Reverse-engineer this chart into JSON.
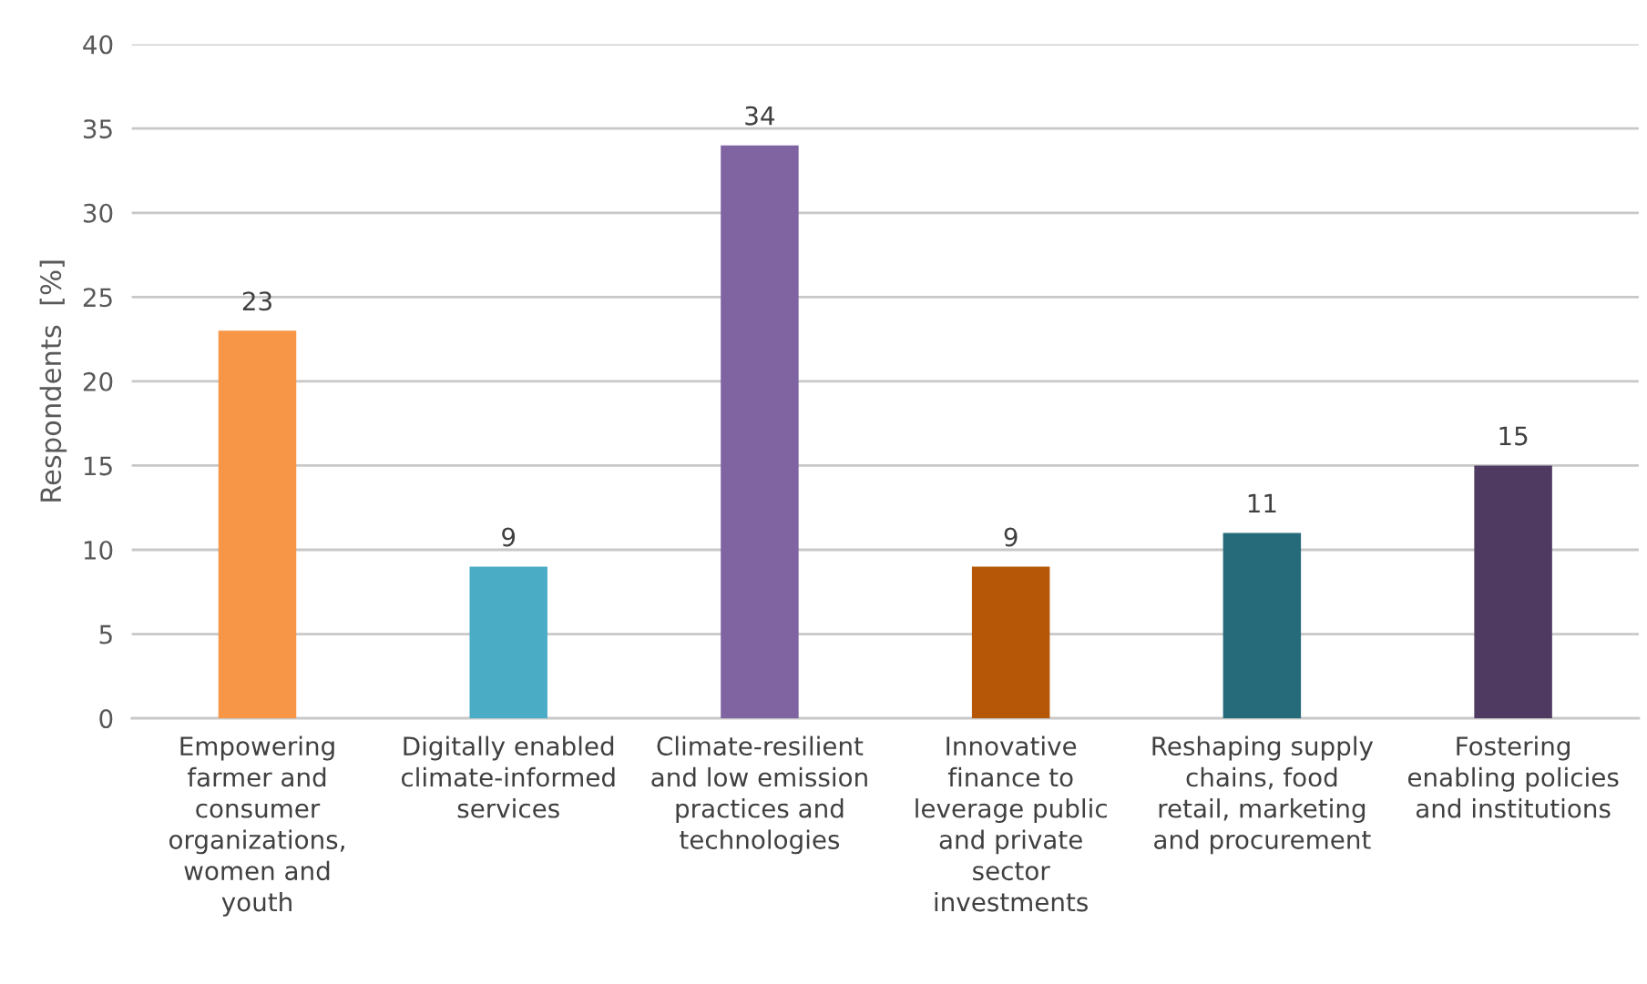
{
  "chart_data": {
    "type": "bar",
    "ylabel": "Respondents  [%]",
    "categories": [
      "Empowering\nfarmer and\nconsumer\norganizations,\nwomen and\nyouth",
      "Digitally enabled\nclimate-informed\nservices",
      "Climate-resilient\nand low emission\npractices and\ntechnologies",
      "Innovative\nfinance to\nleverage public\nand private\nsector\ninvestments",
      "Reshaping supply\nchains, food\nretail, marketing\nand procurement",
      "Fostering\nenabling policies\nand institutions"
    ],
    "values": [
      23,
      9,
      34,
      9,
      11,
      15
    ],
    "colors": [
      "#f79646",
      "#4bacc6",
      "#8064a2",
      "#b65708",
      "#266b7a",
      "#4f3a62"
    ],
    "ylim": [
      0,
      40
    ],
    "yticks": [
      0,
      5,
      10,
      15,
      20,
      25,
      30,
      35,
      40
    ],
    "grid": "y",
    "data_labels": true,
    "legend": false
  }
}
